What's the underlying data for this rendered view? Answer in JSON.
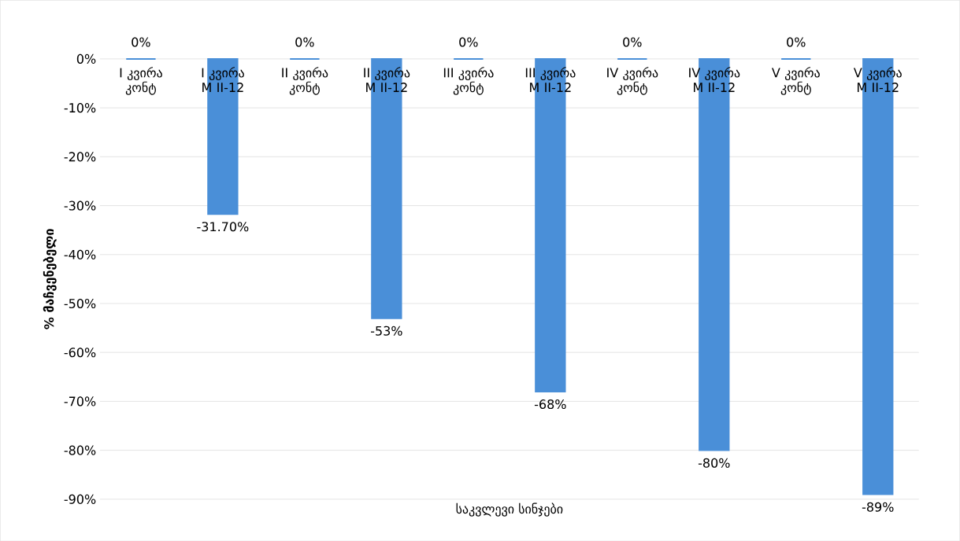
{
  "chart_data": {
    "type": "bar",
    "xlabel": "საკვლევი სინჯები",
    "ylabel": "% მაჩვენებელი",
    "categories": [
      "I კვირა კონტ",
      "I კვირა M II-12",
      "II კვირა კონტ",
      "II კვირა M II-12",
      "III კვირა კონტ",
      "III კვირა M II-12",
      "IV კვირა კონტ",
      "IV კვირა M II-12",
      "V კვირა კონტ",
      "V კვირა M II-12"
    ],
    "values": [
      0,
      -31.7,
      0,
      -53,
      0,
      -68,
      0,
      -80,
      0,
      -89
    ],
    "value_labels": [
      "0%",
      "-31.70%",
      "0%",
      "-53%",
      "0%",
      "-68%",
      "0%",
      "-80%",
      "0%",
      "-89%"
    ],
    "color": "#4a8fd8",
    "ylim": [
      -90,
      0
    ],
    "yticks": [
      {
        "value": 0,
        "label": "0%"
      },
      {
        "value": -10,
        "label": "-10%"
      },
      {
        "value": -20,
        "label": "-20%"
      },
      {
        "value": -30,
        "label": "-30%"
      },
      {
        "value": -40,
        "label": "-40%"
      },
      {
        "value": -50,
        "label": "-50%"
      },
      {
        "value": -60,
        "label": "-60%"
      },
      {
        "value": -70,
        "label": "-70%"
      },
      {
        "value": -80,
        "label": "-80%"
      },
      {
        "value": -90,
        "label": "-90%"
      }
    ],
    "grid": "y"
  }
}
